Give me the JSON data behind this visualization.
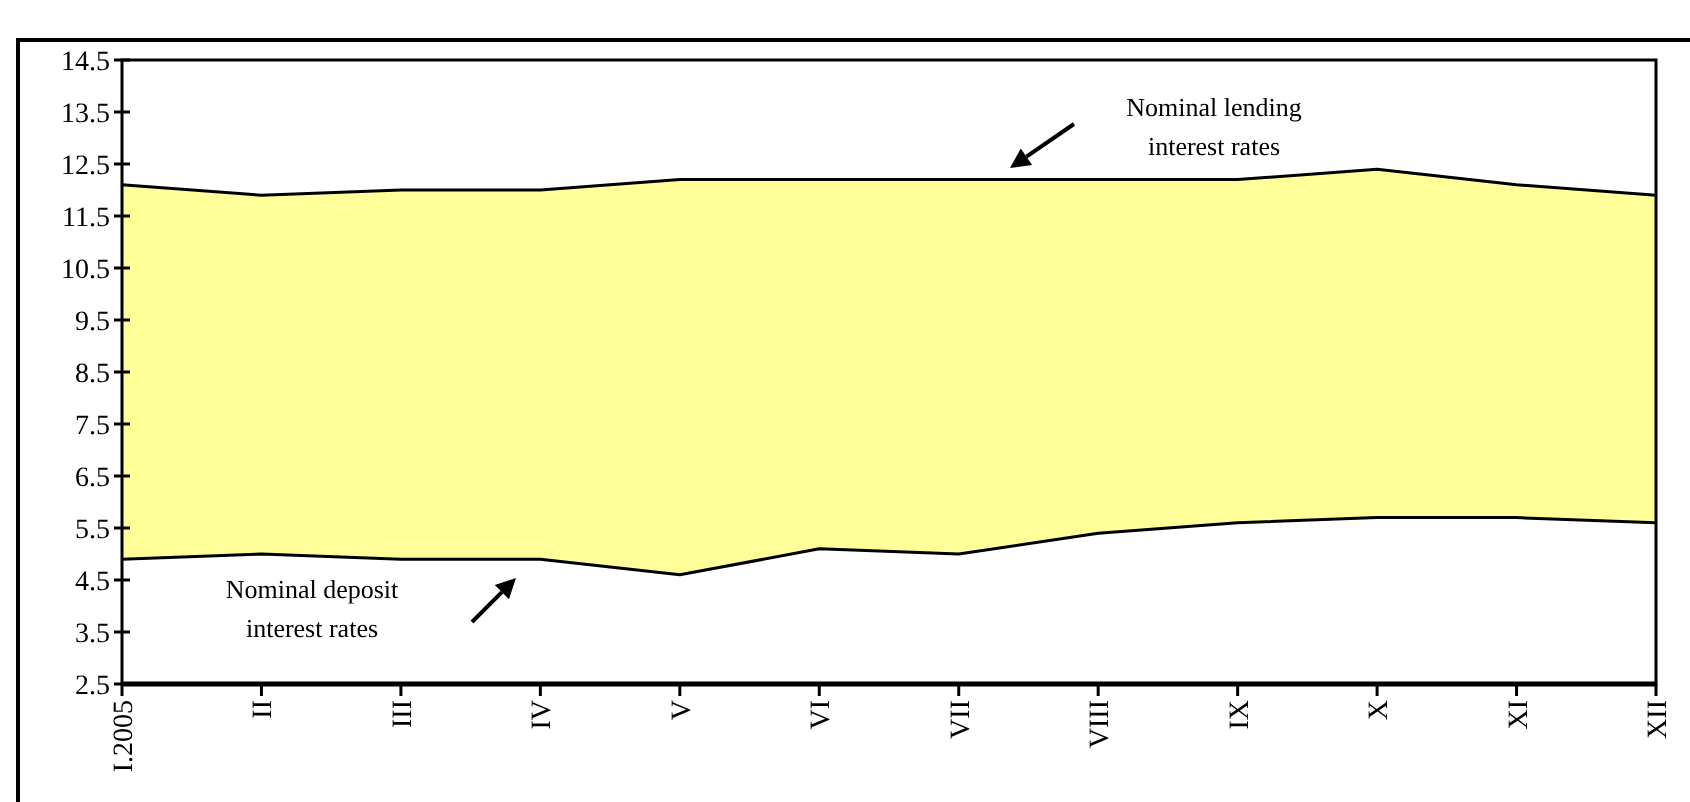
{
  "chart_data": {
    "type": "area",
    "categories": [
      "I.2005",
      "II",
      "III",
      "IV",
      "V",
      "VI",
      "VII",
      "VIII",
      "IX",
      "X",
      "XI",
      "XII"
    ],
    "series": [
      {
        "color": "#ffff99",
        "values": [
          12.1,
          11.9,
          12.0,
          12.0,
          12.2,
          12.2,
          12.2,
          12.2,
          12.2,
          12.4,
          12.1,
          11.9
        ]
      },
      {
        "color": "#ffffff",
        "values": [
          4.9,
          5.0,
          4.9,
          4.9,
          4.6,
          5.1,
          5.0,
          5.4,
          5.6,
          5.7,
          5.7,
          5.6
        ]
      }
    ],
    "ylim": [
      2.5,
      14.5
    ],
    "yticks": [
      2.5,
      3.5,
      4.5,
      5.5,
      6.5,
      7.5,
      8.5,
      9.5,
      10.5,
      11.5,
      12.5,
      13.5,
      14.5
    ],
    "annotations": [
      "Nominal lending interest rates",
      "Nominal deposit interest rates"
    ],
    "grid": false
  }
}
